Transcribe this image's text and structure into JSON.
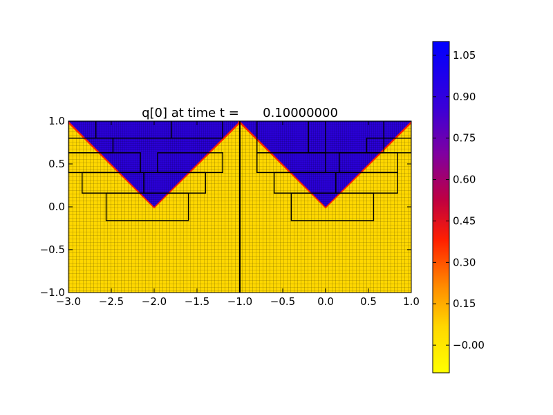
{
  "chart_data": {
    "type": "heatmap",
    "title": "q[0] at time t =      0.10000000",
    "xlim": [
      -3.0,
      1.0
    ],
    "ylim": [
      -1.0,
      1.0
    ],
    "x_ticks": [
      "−3.0",
      "−2.5",
      "−2.0",
      "−1.5",
      "−1.0",
      "−0.5",
      "0.0",
      "0.5",
      "1.0"
    ],
    "x_tick_values": [
      -3.0,
      -2.5,
      -2.0,
      -1.5,
      -1.0,
      -0.5,
      0.0,
      0.5,
      1.0
    ],
    "y_ticks": [
      "−1.0",
      "−0.5",
      "0.0",
      "0.5",
      "1.0"
    ],
    "y_tick_values": [
      -1.0,
      -0.5,
      0.0,
      0.5,
      1.0
    ],
    "colorbar": {
      "vmin": -0.1,
      "vmax": 1.1,
      "ticks": [
        "−0.00",
        "0.15",
        "0.30",
        "0.45",
        "0.60",
        "0.75",
        "0.90",
        "1.05"
      ],
      "tick_values": [
        0.0,
        0.15,
        0.3,
        0.45,
        0.6,
        0.75,
        0.9,
        1.05
      ],
      "colors": [
        "#ffff00",
        "#ffd700",
        "#ff8c00",
        "#ff0000",
        "#b00060",
        "#6000b0",
        "#2000e0",
        "#0000ff"
      ]
    },
    "field": {
      "description_free": true,
      "low_value": 0.0,
      "high_value": 1.0,
      "vertices": [
        [
          -2.0,
          0.0
        ],
        [
          0.0,
          0.0
        ]
      ]
    },
    "grid_patches": [
      {
        "x": [
          -3.0,
          -2.68
        ],
        "y": [
          0.8,
          1.0
        ]
      },
      {
        "x": [
          -2.68,
          -1.8
        ],
        "y": [
          0.8,
          1.0
        ]
      },
      {
        "x": [
          -1.8,
          -1.2
        ],
        "y": [
          0.8,
          1.0
        ]
      },
      {
        "x": [
          -3.0,
          -2.48
        ],
        "y": [
          0.63,
          0.8
        ]
      },
      {
        "x": [
          -3.0,
          -2.16
        ],
        "y": [
          0.4,
          0.63
        ]
      },
      {
        "x": [
          -1.96,
          -1.2
        ],
        "y": [
          0.4,
          0.63
        ]
      },
      {
        "x": [
          -2.84,
          -2.12
        ],
        "y": [
          0.16,
          0.4
        ]
      },
      {
        "x": [
          -2.12,
          -1.4
        ],
        "y": [
          0.16,
          0.4
        ]
      },
      {
        "x": [
          -2.56,
          -1.6
        ],
        "y": [
          -0.16,
          0.16
        ]
      },
      {
        "x": [
          -0.8,
          -0.0
        ],
        "y": [
          0.63,
          1.0
        ]
      },
      {
        "x": [
          -0.2,
          0.68
        ],
        "y": [
          0.63,
          1.0
        ]
      },
      {
        "x": [
          0.68,
          1.0
        ],
        "y": [
          0.8,
          1.0
        ]
      },
      {
        "x": [
          0.48,
          1.0
        ],
        "y": [
          0.63,
          0.8
        ]
      },
      {
        "x": [
          -0.8,
          0.0
        ],
        "y": [
          0.4,
          0.63
        ]
      },
      {
        "x": [
          0.16,
          0.84
        ],
        "y": [
          0.4,
          0.63
        ]
      },
      {
        "x": [
          -0.6,
          0.12
        ],
        "y": [
          0.16,
          0.4
        ]
      },
      {
        "x": [
          0.12,
          0.84
        ],
        "y": [
          0.16,
          0.4
        ]
      },
      {
        "x": [
          -0.4,
          0.56
        ],
        "y": [
          -0.16,
          0.16
        ]
      }
    ]
  }
}
